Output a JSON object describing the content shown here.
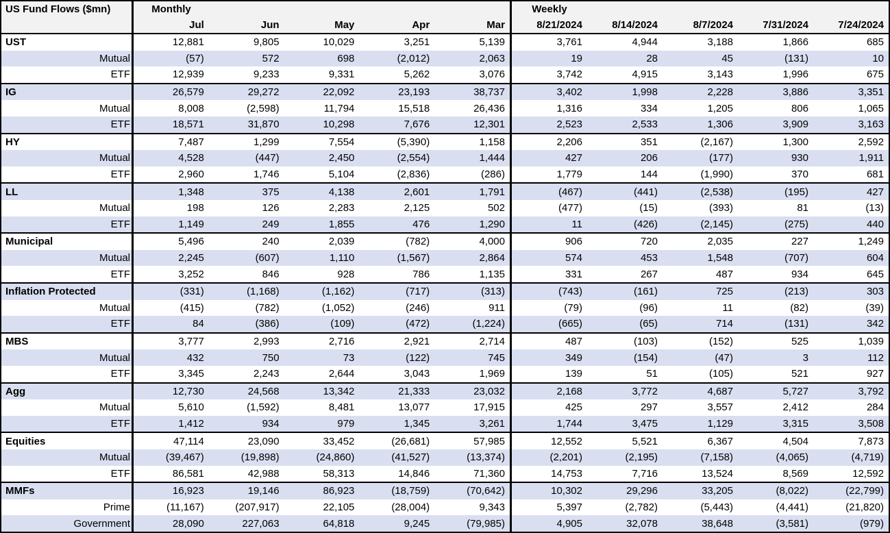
{
  "header": {
    "title": "US Fund Flows ($mn)",
    "sections": [
      {
        "label": "Monthly",
        "columns": [
          "Jul",
          "Jun",
          "May",
          "Apr",
          "Mar"
        ]
      },
      {
        "label": "Weekly",
        "columns": [
          "8/21/2024",
          "8/14/2024",
          "8/7/2024",
          "7/31/2024",
          "7/24/2024"
        ]
      }
    ]
  },
  "rows": [
    {
      "label": "UST",
      "style": "category",
      "monthly": [
        "12,881",
        "9,805",
        "10,029",
        "3,251",
        "5,139"
      ],
      "weekly": [
        "3,761",
        "4,944",
        "3,188",
        "1,866",
        "685"
      ]
    },
    {
      "label": "Mutual",
      "style": "sub",
      "monthly": [
        "(57)",
        "572",
        "698",
        "(2,012)",
        "2,063"
      ],
      "weekly": [
        "19",
        "28",
        "45",
        "(131)",
        "10"
      ]
    },
    {
      "label": "ETF",
      "style": "sub",
      "monthly": [
        "12,939",
        "9,233",
        "9,331",
        "5,262",
        "3,076"
      ],
      "weekly": [
        "3,742",
        "4,915",
        "3,143",
        "1,996",
        "675"
      ]
    },
    {
      "label": "IG",
      "style": "category",
      "monthly": [
        "26,579",
        "29,272",
        "22,092",
        "23,193",
        "38,737"
      ],
      "weekly": [
        "3,402",
        "1,998",
        "2,228",
        "3,886",
        "3,351"
      ]
    },
    {
      "label": "Mutual",
      "style": "sub",
      "monthly": [
        "8,008",
        "(2,598)",
        "11,794",
        "15,518",
        "26,436"
      ],
      "weekly": [
        "1,316",
        "334",
        "1,205",
        "806",
        "1,065"
      ]
    },
    {
      "label": "ETF",
      "style": "sub",
      "monthly": [
        "18,571",
        "31,870",
        "10,298",
        "7,676",
        "12,301"
      ],
      "weekly": [
        "2,523",
        "2,533",
        "1,306",
        "3,909",
        "3,163"
      ]
    },
    {
      "label": "HY",
      "style": "category",
      "monthly": [
        "7,487",
        "1,299",
        "7,554",
        "(5,390)",
        "1,158"
      ],
      "weekly": [
        "2,206",
        "351",
        "(2,167)",
        "1,300",
        "2,592"
      ]
    },
    {
      "label": "Mutual",
      "style": "sub",
      "monthly": [
        "4,528",
        "(447)",
        "2,450",
        "(2,554)",
        "1,444"
      ],
      "weekly": [
        "427",
        "206",
        "(177)",
        "930",
        "1,911"
      ]
    },
    {
      "label": "ETF",
      "style": "sub",
      "monthly": [
        "2,960",
        "1,746",
        "5,104",
        "(2,836)",
        "(286)"
      ],
      "weekly": [
        "1,779",
        "144",
        "(1,990)",
        "370",
        "681"
      ]
    },
    {
      "label": "LL",
      "style": "category",
      "monthly": [
        "1,348",
        "375",
        "4,138",
        "2,601",
        "1,791"
      ],
      "weekly": [
        "(467)",
        "(441)",
        "(2,538)",
        "(195)",
        "427"
      ]
    },
    {
      "label": "Mutual",
      "style": "sub",
      "monthly": [
        "198",
        "126",
        "2,283",
        "2,125",
        "502"
      ],
      "weekly": [
        "(477)",
        "(15)",
        "(393)",
        "81",
        "(13)"
      ]
    },
    {
      "label": "ETF",
      "style": "sub",
      "monthly": [
        "1,149",
        "249",
        "1,855",
        "476",
        "1,290"
      ],
      "weekly": [
        "11",
        "(426)",
        "(2,145)",
        "(275)",
        "440"
      ]
    },
    {
      "label": "Municipal",
      "style": "category",
      "monthly": [
        "5,496",
        "240",
        "2,039",
        "(782)",
        "4,000"
      ],
      "weekly": [
        "906",
        "720",
        "2,035",
        "227",
        "1,249"
      ]
    },
    {
      "label": "Mutual",
      "style": "sub",
      "monthly": [
        "2,245",
        "(607)",
        "1,110",
        "(1,567)",
        "2,864"
      ],
      "weekly": [
        "574",
        "453",
        "1,548",
        "(707)",
        "604"
      ]
    },
    {
      "label": "ETF",
      "style": "sub",
      "monthly": [
        "3,252",
        "846",
        "928",
        "786",
        "1,135"
      ],
      "weekly": [
        "331",
        "267",
        "487",
        "934",
        "645"
      ]
    },
    {
      "label": "Inflation Protected",
      "style": "category",
      "monthly": [
        "(331)",
        "(1,168)",
        "(1,162)",
        "(717)",
        "(313)"
      ],
      "weekly": [
        "(743)",
        "(161)",
        "725",
        "(213)",
        "303"
      ]
    },
    {
      "label": "Mutual",
      "style": "sub",
      "monthly": [
        "(415)",
        "(782)",
        "(1,052)",
        "(246)",
        "911"
      ],
      "weekly": [
        "(79)",
        "(96)",
        "11",
        "(82)",
        "(39)"
      ]
    },
    {
      "label": "ETF",
      "style": "sub",
      "monthly": [
        "84",
        "(386)",
        "(109)",
        "(472)",
        "(1,224)"
      ],
      "weekly": [
        "(665)",
        "(65)",
        "714",
        "(131)",
        "342"
      ]
    },
    {
      "label": "MBS",
      "style": "category",
      "monthly": [
        "3,777",
        "2,993",
        "2,716",
        "2,921",
        "2,714"
      ],
      "weekly": [
        "487",
        "(103)",
        "(152)",
        "525",
        "1,039"
      ]
    },
    {
      "label": "Mutual",
      "style": "sub",
      "monthly": [
        "432",
        "750",
        "73",
        "(122)",
        "745"
      ],
      "weekly": [
        "349",
        "(154)",
        "(47)",
        "3",
        "112"
      ]
    },
    {
      "label": "ETF",
      "style": "sub",
      "monthly": [
        "3,345",
        "2,243",
        "2,644",
        "3,043",
        "1,969"
      ],
      "weekly": [
        "139",
        "51",
        "(105)",
        "521",
        "927"
      ]
    },
    {
      "label": "Agg",
      "style": "category",
      "monthly": [
        "12,730",
        "24,568",
        "13,342",
        "21,333",
        "23,032"
      ],
      "weekly": [
        "2,168",
        "3,772",
        "4,687",
        "5,727",
        "3,792"
      ]
    },
    {
      "label": "Mutual",
      "style": "sub",
      "monthly": [
        "5,610",
        "(1,592)",
        "8,481",
        "13,077",
        "17,915"
      ],
      "weekly": [
        "425",
        "297",
        "3,557",
        "2,412",
        "284"
      ]
    },
    {
      "label": "ETF",
      "style": "sub",
      "monthly": [
        "1,412",
        "934",
        "979",
        "1,345",
        "3,261"
      ],
      "weekly": [
        "1,744",
        "3,475",
        "1,129",
        "3,315",
        "3,508"
      ]
    },
    {
      "label": "Equities",
      "style": "category",
      "monthly": [
        "47,114",
        "23,090",
        "33,452",
        "(26,681)",
        "57,985"
      ],
      "weekly": [
        "12,552",
        "5,521",
        "6,367",
        "4,504",
        "7,873"
      ]
    },
    {
      "label": "Mutual",
      "style": "sub",
      "monthly": [
        "(39,467)",
        "(19,898)",
        "(24,860)",
        "(41,527)",
        "(13,374)"
      ],
      "weekly": [
        "(2,201)",
        "(2,195)",
        "(7,158)",
        "(4,065)",
        "(4,719)"
      ]
    },
    {
      "label": "ETF",
      "style": "sub",
      "monthly": [
        "86,581",
        "42,988",
        "58,313",
        "14,846",
        "71,360"
      ],
      "weekly": [
        "14,753",
        "7,716",
        "13,524",
        "8,569",
        "12,592"
      ]
    },
    {
      "label": "MMFs",
      "style": "category",
      "monthly": [
        "16,923",
        "19,146",
        "86,923",
        "(18,759)",
        "(70,642)"
      ],
      "weekly": [
        "10,302",
        "29,296",
        "33,205",
        "(8,022)",
        "(22,799)"
      ]
    },
    {
      "label": "Prime",
      "style": "sub",
      "monthly": [
        "(11,167)",
        "(207,917)",
        "22,105",
        "(28,004)",
        "9,343"
      ],
      "weekly": [
        "5,397",
        "(2,782)",
        "(5,443)",
        "(4,441)",
        "(21,820)"
      ]
    },
    {
      "label": "Government",
      "style": "sub",
      "monthly": [
        "28,090",
        "227,063",
        "64,818",
        "9,245",
        "(79,985)"
      ],
      "weekly": [
        "4,905",
        "32,078",
        "38,648",
        "(3,581)",
        "(979)"
      ]
    }
  ],
  "colors": {
    "row_stripe": "#d9dff0",
    "header_bg": "#f2f2f2",
    "border": "#000000"
  }
}
